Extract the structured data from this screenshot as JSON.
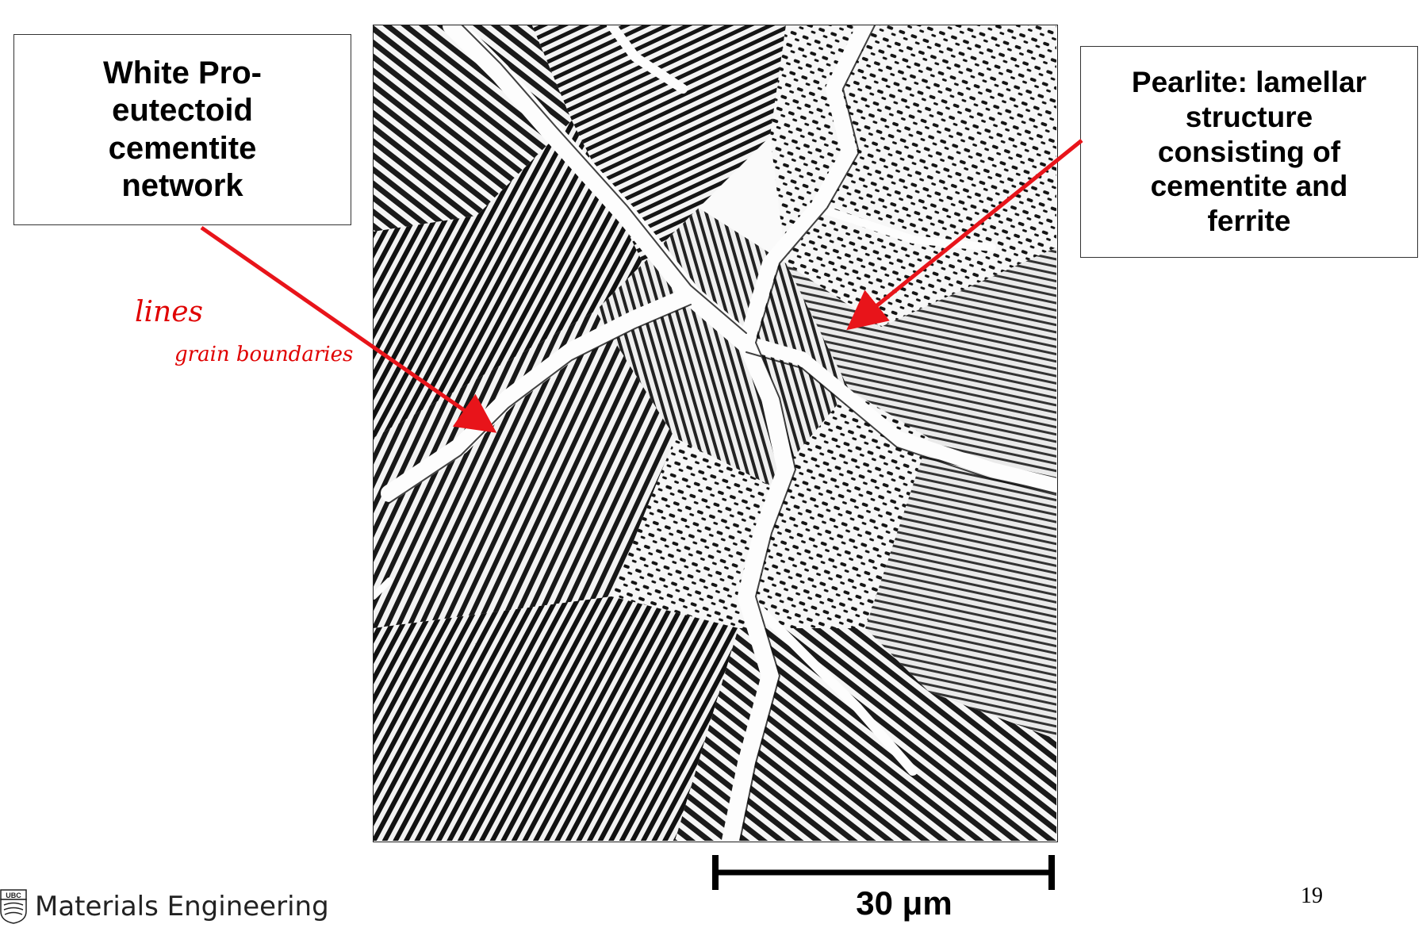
{
  "slide": {
    "page_number": "19",
    "footer": {
      "logo_text": "UBC",
      "title": "Materials Engineering"
    }
  },
  "labels": {
    "cementite": {
      "text": "White Pro-\neutectoid\ncementite\nnetwork"
    },
    "pearlite": {
      "text": "Pearlite: lamellar\nstructure\nconsisting of\ncementite and\nferrite"
    }
  },
  "scale_bar": {
    "label": "30 μm",
    "color": "#000000"
  },
  "annotations": {
    "arrow_color": "#e8141a",
    "handwritten": {
      "line1": "lines",
      "line2": "grain boundaries",
      "color": "#e00000"
    }
  },
  "micrograph": {
    "description_color_dark": "#111111",
    "description_color_light": "#ffffff"
  }
}
